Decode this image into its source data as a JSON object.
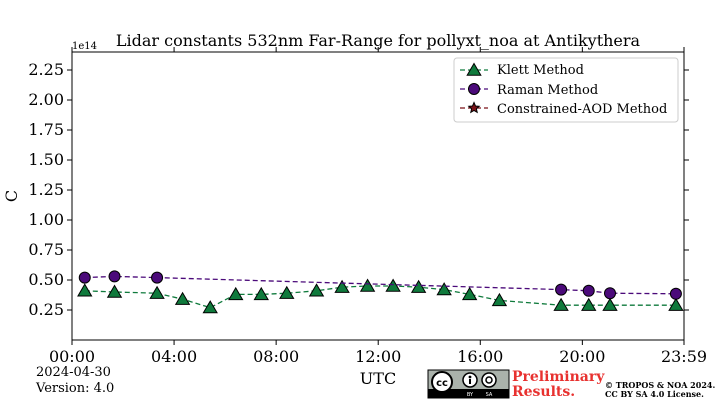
{
  "chart_data": {
    "type": "line",
    "title": "Lidar constants 532nm Far-Range for pollyxt_noa at Antikythera",
    "xlabel": "UTC",
    "ylabel": "C",
    "y_offset_text": "1e14",
    "xlim": [
      "00:00",
      "23:59"
    ],
    "ylim": [
      0.0,
      2.4
    ],
    "x_ticks": [
      "00:00",
      "04:00",
      "08:00",
      "12:00",
      "16:00",
      "20:00",
      "23:59"
    ],
    "y_ticks": [
      "0.25",
      "0.50",
      "0.75",
      "1.00",
      "1.25",
      "1.50",
      "1.75",
      "2.00",
      "2.25"
    ],
    "grid": false,
    "legend_position": "top-right",
    "series": [
      {
        "name": "Klett Method",
        "color": "#0f7a3c",
        "marker": "triangle",
        "points": [
          {
            "x": "00:30",
            "y": 0.41
          },
          {
            "x": "01:40",
            "y": 0.4
          },
          {
            "x": "03:20",
            "y": 0.39
          },
          {
            "x": "04:20",
            "y": 0.34
          },
          {
            "x": "05:25",
            "y": 0.27
          },
          {
            "x": "06:25",
            "y": 0.38
          },
          {
            "x": "07:25",
            "y": 0.38
          },
          {
            "x": "08:25",
            "y": 0.39
          },
          {
            "x": "09:35",
            "y": 0.41
          },
          {
            "x": "10:35",
            "y": 0.44
          },
          {
            "x": "11:35",
            "y": 0.45
          },
          {
            "x": "12:35",
            "y": 0.45
          },
          {
            "x": "13:35",
            "y": 0.44
          },
          {
            "x": "14:35",
            "y": 0.42
          },
          {
            "x": "15:35",
            "y": 0.38
          },
          {
            "x": "16:45",
            "y": 0.33
          },
          {
            "x": "19:10",
            "y": 0.29
          },
          {
            "x": "20:15",
            "y": 0.29
          },
          {
            "x": "21:05",
            "y": 0.29
          },
          {
            "x": "23:40",
            "y": 0.29
          }
        ]
      },
      {
        "name": "Raman Method",
        "color": "#4b0a7a",
        "marker": "circle",
        "points": [
          {
            "x": "00:30",
            "y": 0.52
          },
          {
            "x": "01:40",
            "y": 0.53
          },
          {
            "x": "03:20",
            "y": 0.52
          },
          {
            "x": "19:10",
            "y": 0.42
          },
          {
            "x": "20:15",
            "y": 0.41
          },
          {
            "x": "21:05",
            "y": 0.39
          },
          {
            "x": "23:40",
            "y": 0.385
          }
        ]
      },
      {
        "name": "Constrained-AOD Method",
        "color": "#7a1218",
        "marker": "star",
        "points": []
      }
    ]
  },
  "footer": {
    "date": "2024-04-30",
    "version": "Version: 4.0",
    "license_badge": {
      "icon": "cc-by-sa-icon",
      "by": "BY",
      "sa": "SA"
    },
    "preliminary_line1": "Preliminary",
    "preliminary_line2": "Results.",
    "copyright_line1": "© TROPOS & NOA 2024.",
    "copyright_line2": "CC BY SA 4.0 License."
  }
}
